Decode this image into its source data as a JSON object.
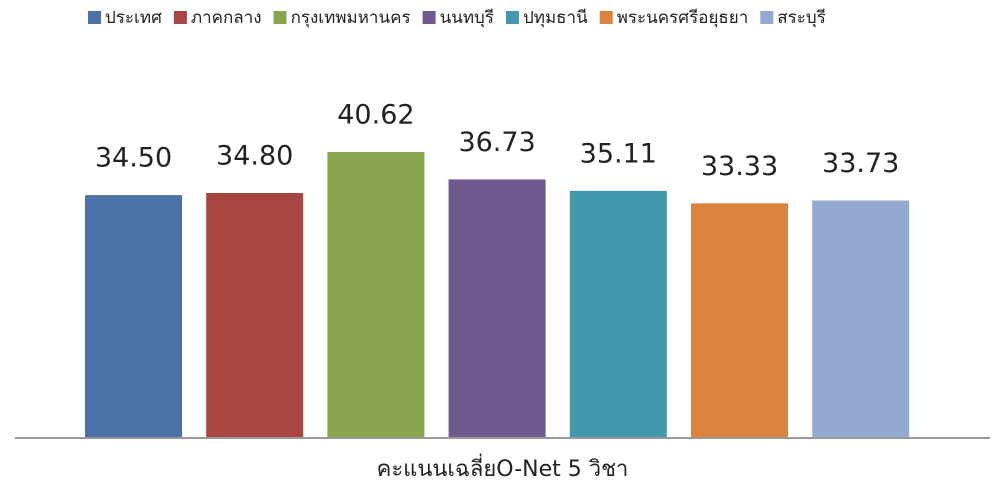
{
  "chart_data": {
    "type": "bar",
    "categories": [
      "คะแนนเฉลี่ยO-Net  5 วิชา"
    ],
    "series": [
      {
        "name": "ประเทศ",
        "color": "#4a72a6",
        "values": [
          34.5
        ],
        "value_labels": [
          "34.50"
        ]
      },
      {
        "name": "ภาคกลาง",
        "color": "#a84543",
        "values": [
          34.8
        ],
        "value_labels": [
          "34.80"
        ]
      },
      {
        "name": "กรุงเทพมหานคร",
        "color": "#89a54e",
        "values": [
          40.62
        ],
        "value_labels": [
          "40.62"
        ]
      },
      {
        "name": "นนทบุรี",
        "color": "#71588f",
        "values": [
          36.73
        ],
        "value_labels": [
          "36.73"
        ]
      },
      {
        "name": "ปทุมธานี",
        "color": "#4198af",
        "values": [
          35.11
        ],
        "value_labels": [
          "35.11"
        ]
      },
      {
        "name": "พระนครศรีอยุธยา",
        "color": "#db843d",
        "values": [
          33.33
        ],
        "value_labels": [
          "33.33"
        ]
      },
      {
        "name": "สระบุรี",
        "color": "#93a9cf",
        "values": [
          33.73
        ],
        "value_labels": [
          "33.73"
        ]
      }
    ],
    "ylim": [
      0,
      50
    ],
    "grid": false,
    "legend": "top"
  }
}
